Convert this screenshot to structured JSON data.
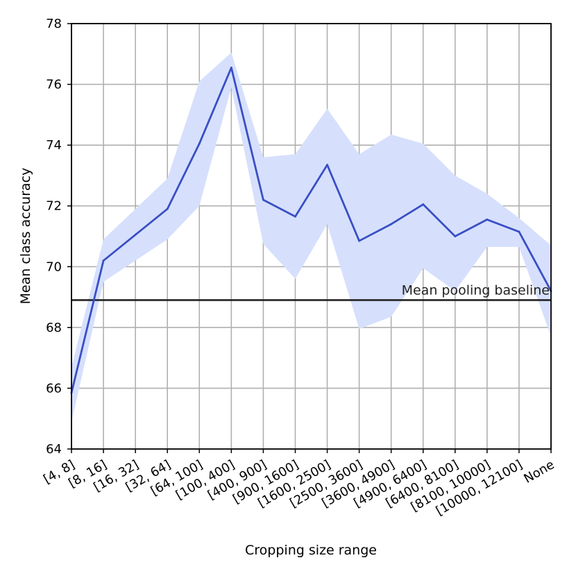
{
  "chart_data": {
    "type": "line",
    "title": "",
    "xlabel": "Cropping size range",
    "ylabel": "Mean class accuracy",
    "ylim": [
      64,
      78
    ],
    "yticks": [
      64,
      66,
      68,
      70,
      72,
      74,
      76,
      78
    ],
    "grid": true,
    "categories": [
      "[4, 8]",
      "[8, 16]",
      "[16, 32]",
      "[32, 64]",
      "[64, 100]",
      "[100, 400]",
      "[400, 900]",
      "[900, 1600]",
      "[1600, 2500]",
      "[2500, 3600]",
      "[3600, 4900]",
      "[4900, 6400]",
      "[6400, 8100]",
      "[8100, 10000]",
      "[10000, 12100]",
      "None"
    ],
    "series": [
      {
        "values": [
          65.85,
          70.2,
          71.05,
          71.9,
          74.05,
          76.55,
          72.2,
          71.65,
          73.35,
          70.85,
          71.4,
          72.05,
          71.0,
          71.55,
          71.15,
          69.2
        ],
        "lower": [
          64.9,
          69.5,
          70.2,
          70.9,
          72.0,
          75.9,
          70.75,
          69.6,
          71.4,
          67.95,
          68.35,
          69.95,
          69.2,
          70.65,
          70.65,
          67.7
        ],
        "upper": [
          66.7,
          70.9,
          71.9,
          72.9,
          76.1,
          77.05,
          73.6,
          73.7,
          75.2,
          73.7,
          74.35,
          74.05,
          73.0,
          72.4,
          71.6,
          70.7
        ],
        "color": "#3a4fc4",
        "band_color": "#d6e0fd"
      }
    ],
    "baseline": {
      "value": 68.9,
      "label": "Mean pooling baseline",
      "color": "#222222"
    }
  }
}
